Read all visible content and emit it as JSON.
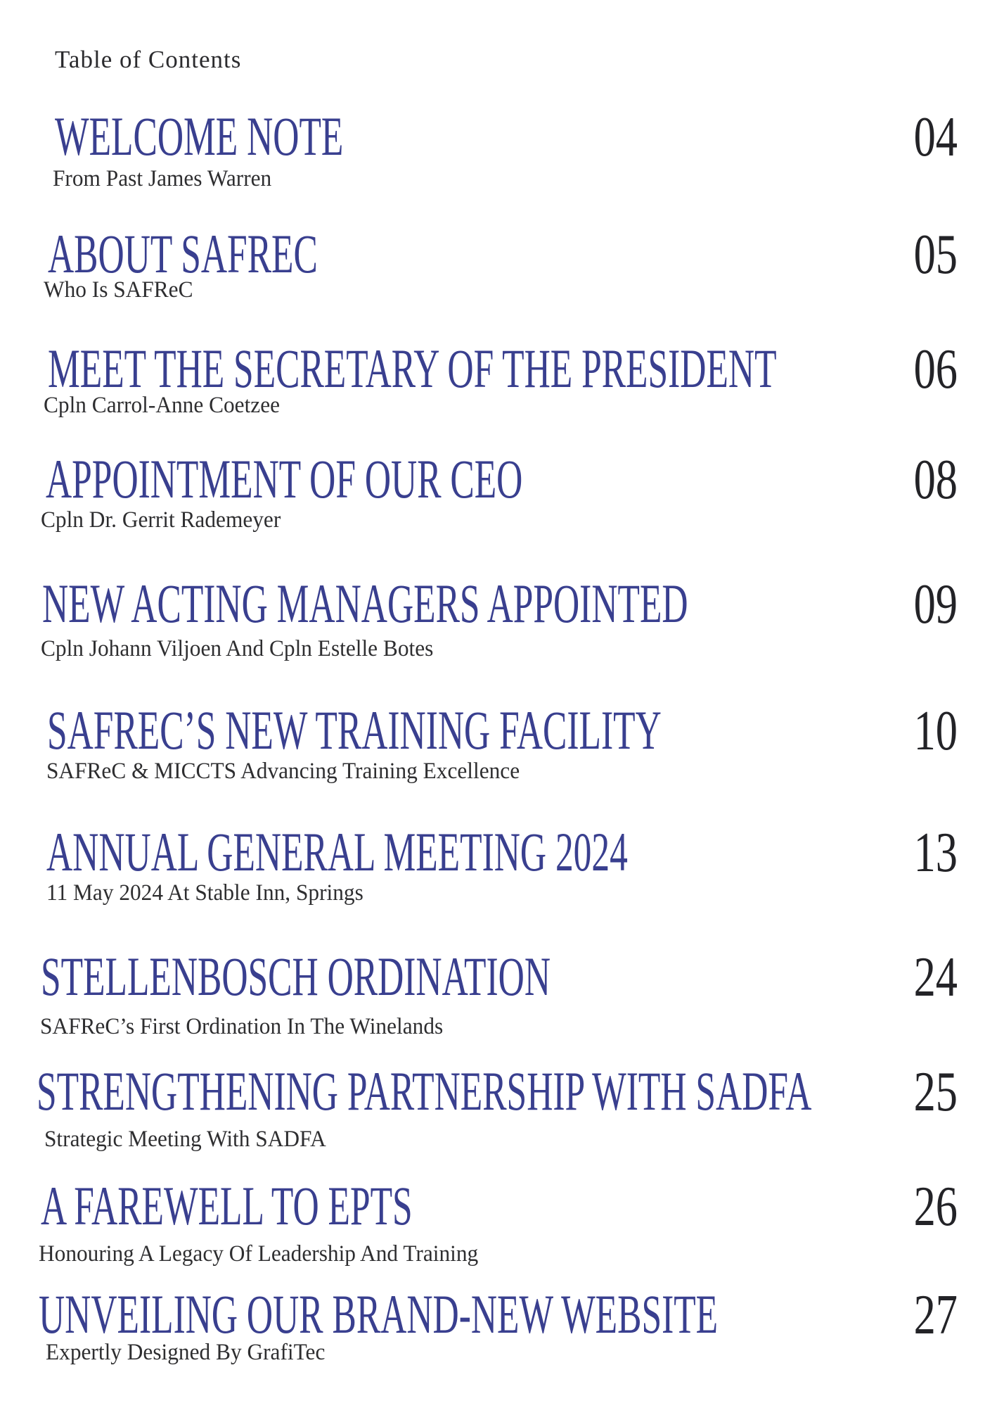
{
  "header": {
    "title": "Table of Contents"
  },
  "colors": {
    "title_accent": "#393f8f",
    "body_text": "#2e2e30",
    "page_number": "#232327",
    "background": "#ffffff"
  },
  "entries": [
    {
      "title": "WELCOME NOTE",
      "subtitle": "From Past James Warren",
      "page": "04"
    },
    {
      "title": "ABOUT SAFREC",
      "subtitle": "Who Is SAFReC",
      "page": "05"
    },
    {
      "title": "MEET THE SECRETARY OF THE PRESIDENT",
      "subtitle": "Cpln Carrol-Anne Coetzee",
      "page": "06"
    },
    {
      "title": "APPOINTMENT OF OUR CEO",
      "subtitle": "Cpln Dr. Gerrit Rademeyer",
      "page": "08"
    },
    {
      "title": "NEW ACTING MANAGERS APPOINTED",
      "subtitle": "Cpln Johann Viljoen And Cpln Estelle Botes",
      "page": "09"
    },
    {
      "title": "SAFREC’S NEW TRAINING FACILITY",
      "subtitle": "SAFReC & MICCTS Advancing Training Excellence",
      "page": "10"
    },
    {
      "title": "ANNUAL GENERAL MEETING 2024",
      "subtitle": "11 May 2024 At Stable Inn, Springs",
      "page": "13"
    },
    {
      "title": "STELLENBOSCH ORDINATION",
      "subtitle": "SAFReC’s First Ordination In The Winelands",
      "page": "24"
    },
    {
      "title": "STRENGTHENING PARTNERSHIP WITH SADFA",
      "subtitle": "Strategic Meeting With SADFA",
      "page": "25"
    },
    {
      "title": "A FAREWELL TO EPTS",
      "subtitle": "Honouring A Legacy Of Leadership And Training",
      "page": "26"
    },
    {
      "title": "UNVEILING OUR BRAND-NEW WEBSITE",
      "subtitle": "Expertly Designed By GrafiTec",
      "page": "27"
    }
  ]
}
